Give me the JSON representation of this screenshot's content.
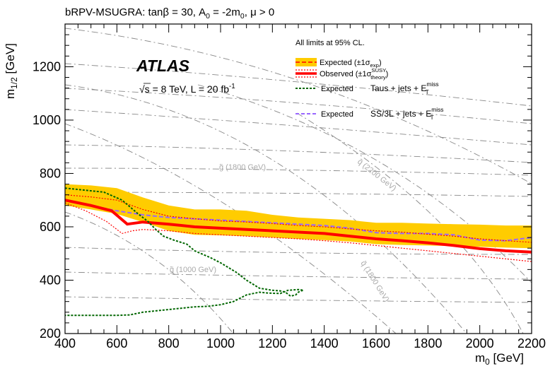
{
  "chart_data": {
    "type": "line",
    "title_parts": {
      "a": "bRPV-MSUGRA: tanβ = 30, A",
      "sub0": "0",
      "b": " = -2m",
      "sub1": "0",
      "c": ", μ > 0"
    },
    "xlabel": {
      "main": "m",
      "sub": "0",
      "unit": " [GeV]"
    },
    "ylabel": {
      "main": "m",
      "sub": "1/2",
      "unit": " [GeV]"
    },
    "xlim": [
      400,
      2200
    ],
    "ylim": [
      200,
      1360
    ],
    "xticks": [
      400,
      600,
      800,
      1000,
      1200,
      1400,
      1600,
      1800,
      2000,
      2200
    ],
    "yticks": [
      200,
      400,
      600,
      800,
      1000,
      1200
    ],
    "atlas_label": "ATLAS",
    "energy_label": {
      "sqrt": "√s",
      "rest": " = 8 TeV, L = 20 fb",
      "sup": "-1"
    },
    "legend": {
      "header": "All limits at 95% CL.",
      "expected_band": {
        "text": "Expected (±1σ",
        "sub": "exp",
        "close": ")"
      },
      "observed": {
        "text": "Observed (±1σ",
        "sup": "SUSY",
        "sub": "theory",
        "close": ")"
      },
      "taus_expected": "Expected",
      "taus_label": {
        "text": "Taus + jets + E",
        "sup": "miss",
        "sub": "T"
      },
      "ss3l_expected": "Expected",
      "ss3l_label": {
        "text": "SS/3L + jets + E",
        "sup": "miss",
        "sub": "T"
      }
    },
    "contour_labels": [
      {
        "text": "g̃ (1800 GeV)"
      },
      {
        "text": "g̃ (1000 GeV)"
      },
      {
        "text": "q̃ (2200 GeV)"
      },
      {
        "text": "q̃ (1800 GeV)"
      }
    ],
    "series": [
      {
        "id": "ss3l_expected_band",
        "x": [
          400,
          500,
          600,
          700,
          800,
          900,
          1000,
          1100,
          1200,
          1300,
          1400,
          1500,
          1600,
          1700,
          1800,
          1900,
          2000,
          2100,
          2200
        ],
        "upper": [
          760,
          755,
          745,
          710,
          680,
          665,
          665,
          660,
          645,
          635,
          630,
          625,
          615,
          615,
          612,
          610,
          608,
          605,
          605
        ],
        "lower": [
          680,
          665,
          648,
          618,
          585,
          570,
          568,
          565,
          560,
          555,
          550,
          545,
          535,
          532,
          530,
          528,
          525,
          522,
          520
        ]
      },
      {
        "id": "ss3l_observed",
        "x": [
          400,
          500,
          580,
          640,
          700,
          800,
          900,
          1000,
          1100,
          1200,
          1300,
          1400,
          1500,
          1600,
          1700,
          1800,
          1900,
          2000,
          2100,
          2200
        ],
        "y": [
          700,
          680,
          660,
          610,
          618,
          610,
          600,
          595,
          590,
          585,
          580,
          575,
          565,
          555,
          548,
          540,
          530,
          518,
          510,
          505
        ]
      },
      {
        "id": "ss3l_observed_plus",
        "x": [
          400,
          500,
          600,
          700,
          800,
          900,
          1000,
          1100,
          1200,
          1300,
          1400,
          1500,
          1600,
          1700,
          1800,
          1900,
          2000,
          2100,
          2200
        ],
        "y": [
          720,
          712,
          700,
          665,
          640,
          630,
          622,
          618,
          612,
          605,
          600,
          592,
          585,
          580,
          572,
          565,
          555,
          548,
          542
        ]
      },
      {
        "id": "ss3l_observed_minus",
        "x": [
          400,
          480,
          560,
          620,
          660,
          700,
          800,
          900,
          1000,
          1100,
          1200,
          1300,
          1400,
          1500,
          1600,
          1700,
          1800,
          1900,
          2000,
          2100,
          2200
        ],
        "y": [
          690,
          660,
          620,
          575,
          585,
          590,
          585,
          575,
          570,
          565,
          560,
          555,
          548,
          540,
          530,
          520,
          510,
          500,
          490,
          480,
          470
        ]
      },
      {
        "id": "ss3l_expected",
        "x": [
          400,
          500,
          600,
          700,
          800,
          900,
          1000,
          1100,
          1200,
          1300,
          1400,
          1500,
          1600,
          1700,
          1800,
          1900,
          2000,
          2100,
          2200
        ],
        "y": [
          700,
          680,
          660,
          645,
          635,
          630,
          625,
          620,
          615,
          610,
          605,
          595,
          578,
          575,
          575,
          570,
          550,
          548,
          560
        ]
      },
      {
        "id": "taus_expected",
        "x": [
          400,
          450,
          550,
          620,
          680,
          720,
          750,
          780,
          820,
          870,
          900,
          960,
          1000,
          1060,
          1100,
          1150,
          1200,
          1230,
          1250,
          1270,
          1290,
          1300,
          1310,
          1320,
          1300,
          1260,
          1230,
          1180,
          1150,
          1100,
          1050,
          1000,
          950,
          900,
          850,
          800,
          750,
          700,
          650,
          600,
          550,
          500,
          450,
          400
        ],
        "y": [
          745,
          740,
          730,
          700,
          650,
          620,
          590,
          565,
          550,
          535,
          510,
          485,
          465,
          430,
          400,
          370,
          362,
          360,
          355,
          340,
          345,
          355,
          360,
          362,
          365,
          362,
          350,
          352,
          355,
          345,
          320,
          308,
          302,
          300,
          295,
          290,
          285,
          280,
          270,
          268,
          268,
          268,
          268,
          268
        ]
      }
    ],
    "colors": {
      "band": "#ffcc00",
      "observed": "#ff0000",
      "ss3l_expected": "#9966ff",
      "taus_expected": "#006600",
      "contour": "#888888"
    },
    "grid": false
  }
}
